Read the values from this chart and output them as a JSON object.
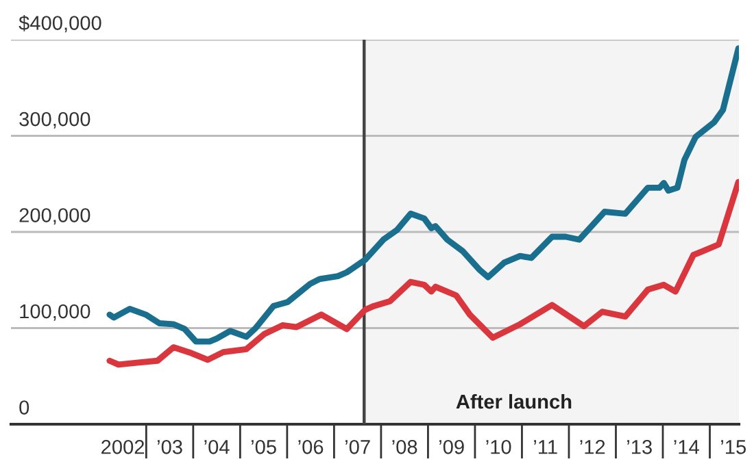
{
  "chart_data": {
    "type": "line",
    "xlim": [
      1999.62,
      2015.12
    ],
    "ylim": [
      0,
      400000
    ],
    "yticks": [
      {
        "value": 0,
        "label": "0"
      },
      {
        "value": 100000,
        "label": "100,000"
      },
      {
        "value": 200000,
        "label": "200,000"
      },
      {
        "value": 300000,
        "label": "300,000"
      },
      {
        "value": 400000,
        "label": "$400,000"
      }
    ],
    "xticks": [
      2002,
      {
        "value": 2003,
        "label": "’03"
      },
      {
        "value": 2004,
        "label": "’04"
      },
      {
        "value": 2005,
        "label": "’05"
      },
      {
        "value": 2006,
        "label": "’06"
      },
      {
        "value": 2007,
        "label": "’07"
      },
      {
        "value": 2008,
        "label": "’08"
      },
      {
        "value": 2009,
        "label": "’09"
      },
      {
        "value": 2010,
        "label": "’10"
      },
      {
        "value": 2011,
        "label": "’11"
      },
      {
        "value": 2012,
        "label": "’12"
      },
      {
        "value": 2013,
        "label": "’13"
      },
      {
        "value": 2014,
        "label": "’14"
      },
      {
        "value": 2015,
        "label": "’15"
      }
    ],
    "grid": "y",
    "series": [
      {
        "color": "#1a6f8e",
        "x": [
          2001.72,
          2001.81,
          2002.15,
          2002.49,
          2002.78,
          2003.08,
          2003.32,
          2003.56,
          2003.85,
          2004.0,
          2004.29,
          2004.63,
          2004.83,
          2005.21,
          2005.51,
          2005.99,
          2006.19,
          2006.58,
          2006.77,
          2007.16,
          2007.55,
          2007.84,
          2008.13,
          2008.42,
          2008.57,
          2008.66,
          2008.91,
          2009.24,
          2009.59,
          2009.78,
          2010.12,
          2010.46,
          2010.7,
          2011.14,
          2011.43,
          2011.72,
          2012.26,
          2012.7,
          2013.18,
          2013.43,
          2013.52,
          2013.62,
          2013.81,
          2013.96,
          2014.2,
          2014.59,
          2014.78,
          2015.11
        ],
        "values": [
          114000,
          111000,
          120000,
          114000,
          105000,
          104000,
          99000,
          86000,
          86000,
          89000,
          97000,
          91000,
          100000,
          123000,
          127000,
          146000,
          151000,
          154000,
          158000,
          171000,
          192000,
          202000,
          219000,
          214000,
          204000,
          206000,
          192000,
          180000,
          161000,
          153000,
          168000,
          175000,
          173000,
          195000,
          195000,
          192000,
          221000,
          219000,
          246000,
          246000,
          251000,
          243000,
          246000,
          275000,
          299000,
          314000,
          327000,
          391000
        ]
      },
      {
        "color": "#d9363e",
        "x": [
          2001.72,
          2001.91,
          2002.3,
          2002.74,
          2003.08,
          2003.46,
          2003.81,
          2004.14,
          2004.63,
          2005.02,
          2005.41,
          2005.7,
          2006.23,
          2006.77,
          2007.16,
          2007.35,
          2007.69,
          2008.13,
          2008.42,
          2008.57,
          2008.66,
          2009.1,
          2009.39,
          2009.88,
          2010.46,
          2011.14,
          2011.82,
          2012.21,
          2012.7,
          2013.18,
          2013.52,
          2013.77,
          2014.15,
          2014.35,
          2014.69,
          2015.11
        ],
        "values": [
          66000,
          62000,
          64000,
          66000,
          80000,
          74000,
          67000,
          75000,
          78000,
          94000,
          103000,
          101000,
          114000,
          99000,
          119000,
          123000,
          128000,
          148000,
          145000,
          138000,
          143000,
          134000,
          114000,
          90000,
          104000,
          124000,
          102000,
          117000,
          112000,
          140000,
          145000,
          138000,
          176000,
          180000,
          187000,
          252000
        ]
      }
    ],
    "ref_lines": [
      {
        "axis": "x",
        "value": 2007.14,
        "color": "#444444"
      }
    ],
    "bands": [
      {
        "axis": "x",
        "from": 2007.14,
        "to": 2015.12,
        "label": "After launch",
        "color": "#f4f4f4"
      }
    ]
  }
}
